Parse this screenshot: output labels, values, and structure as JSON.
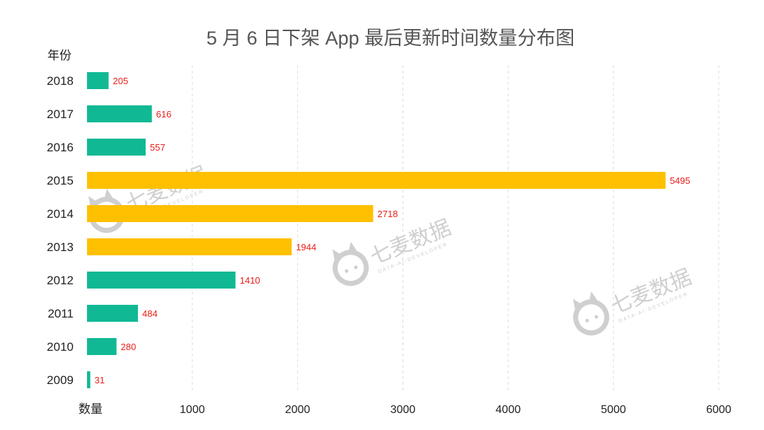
{
  "chart_data": {
    "type": "bar",
    "orientation": "horizontal",
    "title": "5 月 6 日下架 App 最后更新时间数量分布图",
    "ylabel": "年份",
    "xlabel": "数量",
    "categories": [
      "2018",
      "2017",
      "2016",
      "2015",
      "2014",
      "2013",
      "2012",
      "2011",
      "2010",
      "2009"
    ],
    "values": [
      205,
      616,
      557,
      5495,
      2718,
      1944,
      1410,
      484,
      280,
      31
    ],
    "bar_colors": [
      "#10b994",
      "#10b994",
      "#10b994",
      "#fec000",
      "#fec000",
      "#fec000",
      "#10b994",
      "#10b994",
      "#10b994",
      "#10b994"
    ],
    "xlim": [
      0,
      6000
    ],
    "xticks": [
      1000,
      2000,
      3000,
      4000,
      5000,
      6000
    ],
    "grid": true,
    "label_color": "#e8201a"
  },
  "watermark": {
    "text": "七麦数据",
    "subtext": "DATA-AI-DEVELOPER",
    "color": "#cfcfcf",
    "icon": "cat-logo-icon"
  }
}
